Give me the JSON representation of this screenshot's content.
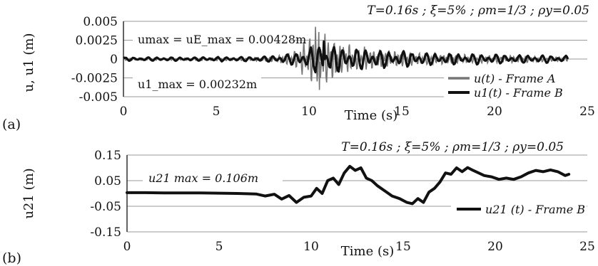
{
  "chart_data": [
    {
      "type": "line",
      "panel_label": "(a)",
      "params": "T=0.16s ;  ξ=5% ; ρm=1/3 ; ρy=0.05",
      "xlabel": "Time (s)",
      "ylabel": "u, u1  (m)",
      "xlim": [
        0,
        25
      ],
      "ylim": [
        -0.005,
        0.005
      ],
      "xticks": [
        "0",
        "5",
        "10",
        "15",
        "20",
        "25"
      ],
      "yticks": [
        "0.005",
        "0.0025",
        "0",
        "-0.0025",
        "-0.005"
      ],
      "grid": "horizontal",
      "legend_position": "bottom-right",
      "annotations": [
        "umax = uE_max = 0.00428m",
        "u1_max = 0.00232m"
      ],
      "series": [
        {
          "name": "u(t)  - Frame A",
          "color": "#777777",
          "envelope": [
            [
              0,
              0.0002
            ],
            [
              2,
              0.0002
            ],
            [
              5,
              0.00025
            ],
            [
              7,
              0.0003
            ],
            [
              8,
              0.0004
            ],
            [
              8.8,
              0.0008
            ],
            [
              9.3,
              0.0015
            ],
            [
              9.6,
              0.0022
            ],
            [
              9.9,
              0.003
            ],
            [
              10.1,
              0.0038
            ],
            [
              10.4,
              0.0043
            ],
            [
              10.7,
              0.0042
            ],
            [
              11,
              0.0038
            ],
            [
              11.4,
              0.003
            ],
            [
              11.8,
              0.0025
            ],
            [
              12.3,
              0.0021
            ],
            [
              13,
              0.0017
            ],
            [
              14,
              0.0014
            ],
            [
              15,
              0.0012
            ],
            [
              16,
              0.001
            ],
            [
              17,
              0.0008
            ],
            [
              18,
              0.0007
            ],
            [
              19,
              0.00065
            ],
            [
              20,
              0.0006
            ],
            [
              22,
              0.0005
            ],
            [
              24,
              0.0004
            ]
          ],
          "peaks": [
            [
              10.35,
              0.00428
            ],
            [
              10.55,
              -0.0041
            ]
          ]
        },
        {
          "name": "u1(t)  - Frame B",
          "color": "#111111",
          "envelope": [
            [
              0,
              0.00025
            ],
            [
              4,
              0.0003
            ],
            [
              7,
              0.00035
            ],
            [
              8,
              0.0005
            ],
            [
              9,
              0.0008
            ],
            [
              9.6,
              0.0012
            ],
            [
              10.3,
              0.002
            ],
            [
              10.8,
              0.00232
            ],
            [
              11.5,
              0.0021
            ],
            [
              12.5,
              0.0017
            ],
            [
              13.5,
              0.0014
            ],
            [
              15,
              0.0012
            ],
            [
              16,
              0.001
            ],
            [
              17,
              0.0009
            ],
            [
              18.5,
              0.0008
            ],
            [
              20,
              0.0007
            ],
            [
              22,
              0.0006
            ],
            [
              24,
              0.0005
            ]
          ],
          "peaks": [
            [
              10.8,
              0.00232
            ]
          ]
        }
      ]
    },
    {
      "type": "line",
      "panel_label": "(b)",
      "params": "T=0.16s ;  ξ=5% ; ρm=1/3 ; ρy=0.05",
      "xlabel": "Time (s)",
      "ylabel": "u21  (m)",
      "xlim": [
        0,
        25
      ],
      "ylim": [
        -0.15,
        0.15
      ],
      "xticks": [
        "0",
        "5",
        "10",
        "15",
        "20",
        "25"
      ],
      "yticks": [
        "0.15",
        "0.05",
        "-0.05",
        "-0.15"
      ],
      "grid": "horizontal",
      "legend_position": "bottom-right",
      "annotations": [
        "u21 max = 0.106m"
      ],
      "series": [
        {
          "name": "u21 (t) - Frame B",
          "color": "#111111",
          "x": [
            0,
            1,
            2,
            3,
            4,
            5,
            6,
            7,
            7.5,
            8,
            8.4,
            8.8,
            9.2,
            9.6,
            10,
            10.3,
            10.6,
            10.9,
            11.2,
            11.5,
            11.8,
            12.1,
            12.4,
            12.7,
            13,
            13.3,
            13.6,
            14,
            14.4,
            14.8,
            15.2,
            15.5,
            15.8,
            16.1,
            16.4,
            16.7,
            17,
            17.3,
            17.6,
            17.9,
            18.2,
            18.5,
            18.8,
            19.1,
            19.4,
            19.8,
            20.2,
            20.6,
            21,
            21.4,
            21.8,
            22.2,
            22.6,
            23,
            23.4,
            23.8,
            24
          ],
          "y": [
            0.003,
            0.003,
            0.002,
            0.002,
            0.002,
            0.001,
            0.0,
            -0.002,
            -0.01,
            -0.003,
            -0.022,
            -0.008,
            -0.035,
            -0.015,
            -0.01,
            0.02,
            0.0,
            0.05,
            0.06,
            0.035,
            0.08,
            0.106,
            0.09,
            0.1,
            0.06,
            0.05,
            0.03,
            0.01,
            -0.01,
            -0.02,
            -0.035,
            -0.04,
            -0.02,
            -0.035,
            0.005,
            0.02,
            0.045,
            0.08,
            0.075,
            0.1,
            0.085,
            0.101,
            0.09,
            0.08,
            0.07,
            0.065,
            0.055,
            0.06,
            0.055,
            0.065,
            0.08,
            0.09,
            0.085,
            0.092,
            0.085,
            0.07,
            0.075
          ]
        }
      ]
    }
  ]
}
